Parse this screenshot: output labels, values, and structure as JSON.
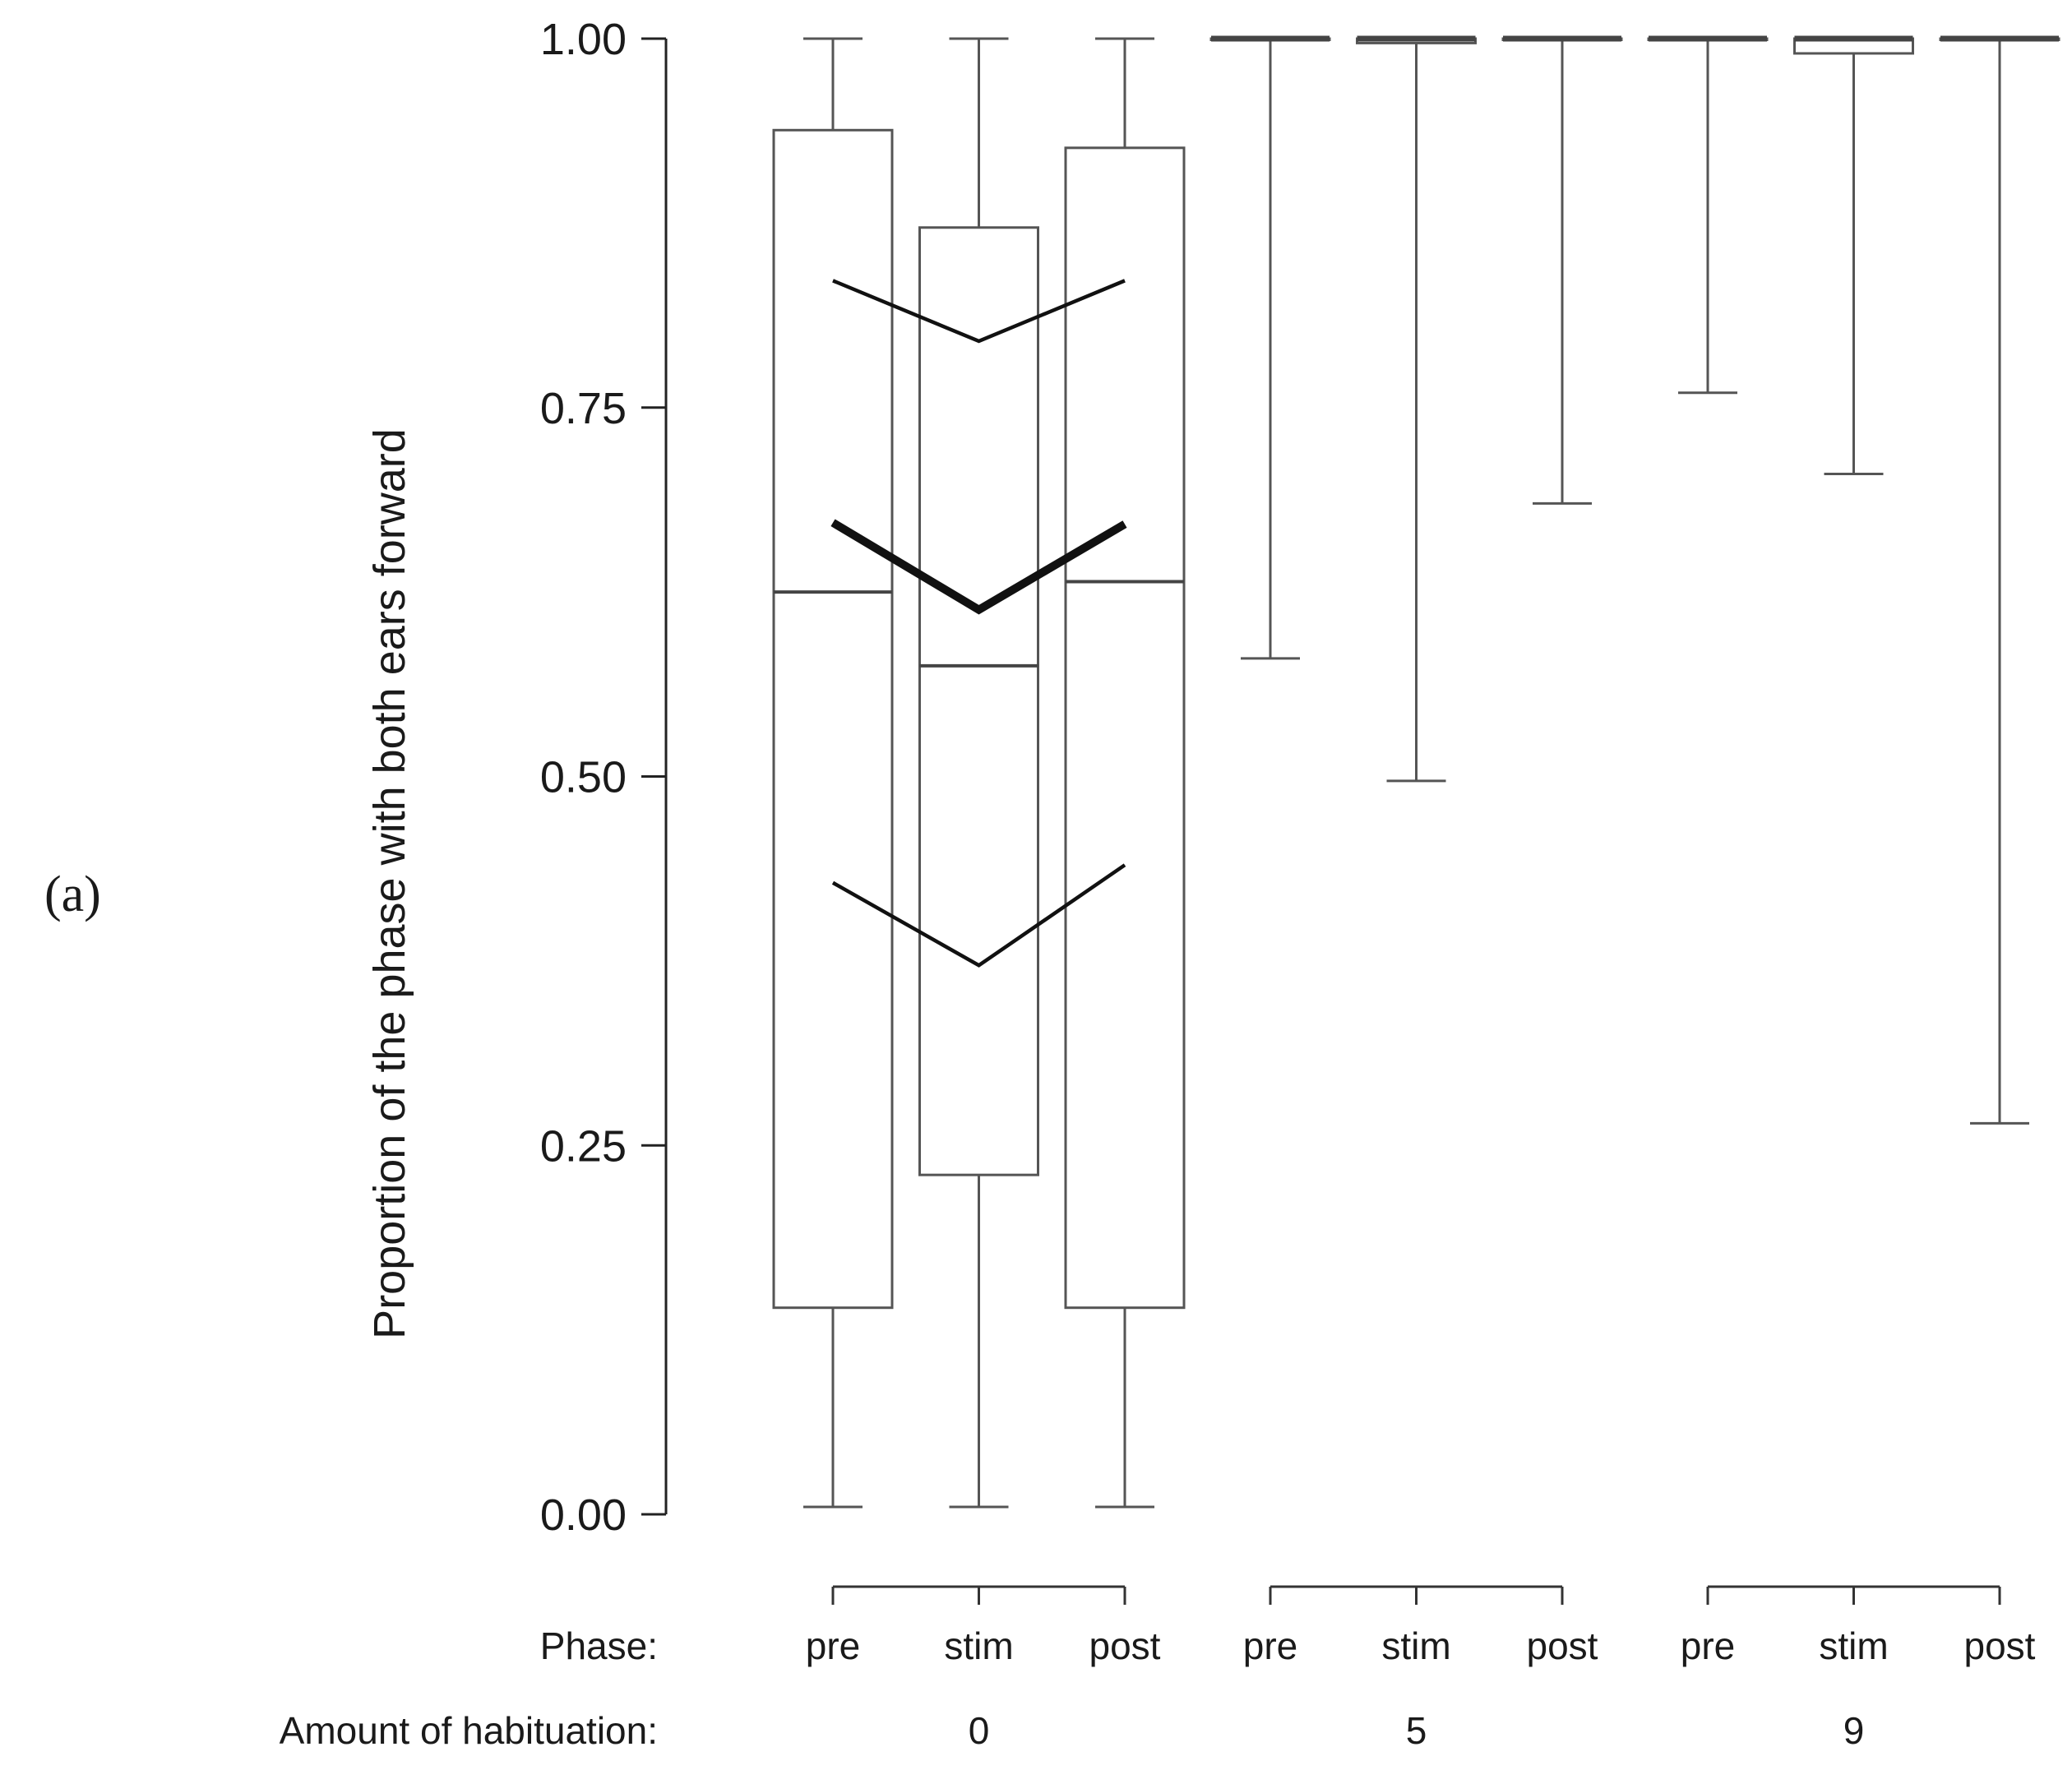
{
  "panel_label": "(a)",
  "chart_data": {
    "type": "box",
    "title": "",
    "ylabel": "Proportion of the phase with both ears forward",
    "ylim": [
      0,
      1
    ],
    "yticks": [
      0.0,
      0.25,
      0.5,
      0.75,
      1.0
    ],
    "ytick_labels": [
      "0.00",
      "0.25",
      "0.50",
      "0.75",
      "1.00"
    ],
    "factor_labels": {
      "phase": "Phase:",
      "habituation": "Amount of habituation:"
    },
    "groups": [
      {
        "habituation": "0",
        "phases": [
          "pre",
          "stim",
          "post"
        ]
      },
      {
        "habituation": "5",
        "phases": [
          "pre",
          "stim",
          "post"
        ]
      },
      {
        "habituation": "9",
        "phases": [
          "pre",
          "stim",
          "post"
        ]
      }
    ],
    "boxes": [
      {
        "habituation": "0",
        "phase": "pre",
        "whisker_low": 0.005,
        "q1": 0.14,
        "median": 0.625,
        "q3": 0.938,
        "whisker_high": 1.0
      },
      {
        "habituation": "0",
        "phase": "stim",
        "whisker_low": 0.005,
        "q1": 0.23,
        "median": 0.575,
        "q3": 0.872,
        "whisker_high": 1.0
      },
      {
        "habituation": "0",
        "phase": "post",
        "whisker_low": 0.005,
        "q1": 0.14,
        "median": 0.632,
        "q3": 0.926,
        "whisker_high": 1.0
      },
      {
        "habituation": "5",
        "phase": "pre",
        "whisker_low": 0.58,
        "q1": 1.0,
        "median": 1.0,
        "q3": 1.0,
        "whisker_high": 1.0
      },
      {
        "habituation": "5",
        "phase": "stim",
        "whisker_low": 0.497,
        "q1": 0.997,
        "median": 1.0,
        "q3": 1.0,
        "whisker_high": 1.0
      },
      {
        "habituation": "5",
        "phase": "post",
        "whisker_low": 0.685,
        "q1": 1.0,
        "median": 1.0,
        "q3": 1.0,
        "whisker_high": 1.0
      },
      {
        "habituation": "9",
        "phase": "pre",
        "whisker_low": 0.76,
        "q1": 1.0,
        "median": 1.0,
        "q3": 1.0,
        "whisker_high": 1.0
      },
      {
        "habituation": "9",
        "phase": "stim",
        "whisker_low": 0.705,
        "q1": 0.99,
        "median": 1.0,
        "q3": 1.0,
        "whisker_high": 1.0
      },
      {
        "habituation": "9",
        "phase": "post",
        "whisker_low": 0.265,
        "q1": 1.0,
        "median": 1.0,
        "q3": 1.0,
        "whisker_high": 1.0
      }
    ],
    "model_fit": {
      "habituation": "0",
      "phases": [
        "pre",
        "stim",
        "post"
      ],
      "estimate": [
        0.672,
        0.613,
        0.671
      ],
      "ci_upper": [
        0.836,
        0.795,
        0.836
      ],
      "ci_lower": [
        0.428,
        0.372,
        0.44
      ]
    },
    "grid": false,
    "legend": "none"
  }
}
